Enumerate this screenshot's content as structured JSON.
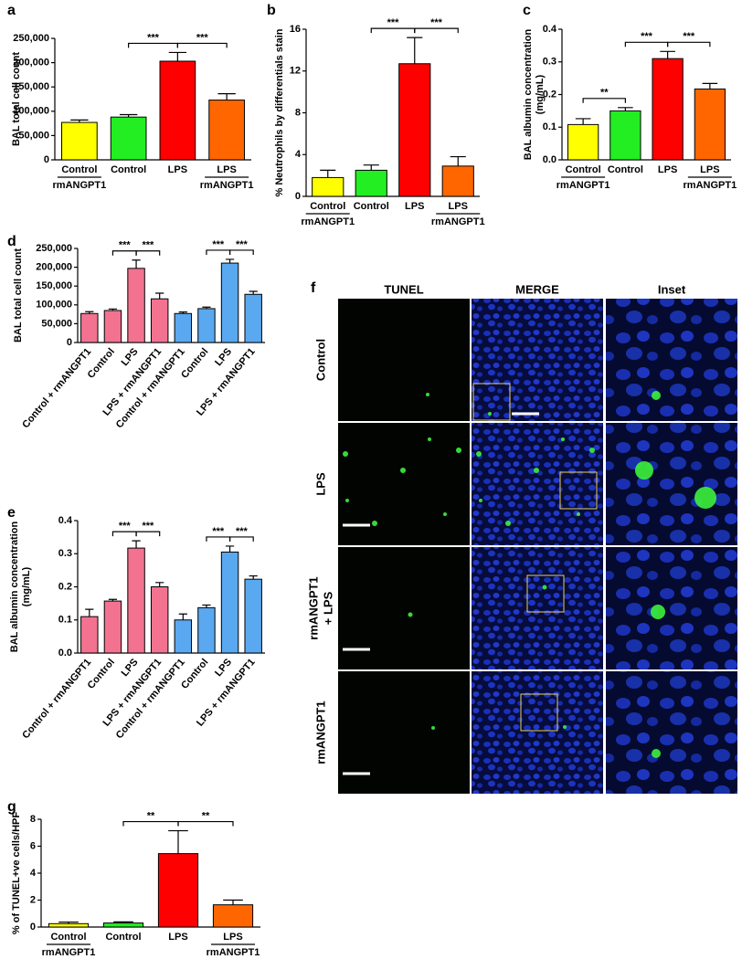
{
  "chart_data": [
    {
      "type": "bar",
      "panel_label": "a",
      "ylabel": [
        "BAL total cell count"
      ],
      "categories": [
        "Control",
        "Control",
        "LPS",
        "LPS"
      ],
      "category_sublabels": [
        "rmANGPT1",
        null,
        null,
        "rmANGPT1"
      ],
      "rotate_labels": false,
      "values": [
        77000,
        88000,
        203000,
        123000
      ],
      "errors": [
        5000,
        5000,
        18000,
        13000
      ],
      "colors": [
        "#ffff00",
        "#22ee22",
        "#ff0000",
        "#ff6600"
      ],
      "ylim": [
        0,
        250000
      ],
      "yticks": [
        0,
        {
          "value": 50000,
          "label": "50,000"
        },
        {
          "value": 100000,
          "label": "100,000"
        },
        {
          "value": 150000,
          "label": "150,000"
        },
        {
          "value": 200000,
          "label": "200,000"
        },
        {
          "value": 250000,
          "label": "250,000"
        }
      ],
      "significance": [
        {
          "between": [
            1,
            2
          ],
          "label": "***"
        },
        {
          "between": [
            2,
            3
          ],
          "label": "***"
        }
      ]
    },
    {
      "type": "bar",
      "panel_label": "b",
      "ylabel": [
        "% Neutrophils by differentials stain"
      ],
      "categories": [
        "Control",
        "Control",
        "LPS",
        "LPS"
      ],
      "category_sublabels": [
        "rmANGPT1",
        null,
        null,
        "rmANGPT1"
      ],
      "rotate_labels": false,
      "values": [
        1.8,
        2.5,
        12.7,
        2.9
      ],
      "errors": [
        0.7,
        0.5,
        2.5,
        0.9
      ],
      "colors": [
        "#ffff00",
        "#22ee22",
        "#ff0000",
        "#ff6600"
      ],
      "ylim": [
        0,
        16
      ],
      "yticks": [
        0,
        4,
        8,
        12,
        16
      ],
      "significance": [
        {
          "between": [
            1,
            2
          ],
          "label": "***"
        },
        {
          "between": [
            2,
            3
          ],
          "label": "***"
        }
      ]
    },
    {
      "type": "bar",
      "panel_label": "c",
      "ylabel": [
        "BAL albumin concentration",
        "(mg/mL)"
      ],
      "categories": [
        "Control",
        "Control",
        "LPS",
        "LPS"
      ],
      "category_sublabels": [
        "rmANGPT1",
        null,
        null,
        "rmANGPT1"
      ],
      "rotate_labels": false,
      "values": [
        0.108,
        0.15,
        0.31,
        0.217
      ],
      "errors": [
        0.018,
        0.01,
        0.022,
        0.017
      ],
      "colors": [
        "#ffff00",
        "#22ee22",
        "#ff0000",
        "#ff6600"
      ],
      "ylim": [
        0,
        0.4
      ],
      "yticks": [
        {
          "value": 0,
          "label": "0.0"
        },
        0.1,
        0.2,
        0.3,
        0.4
      ],
      "significance": [
        {
          "between": [
            0,
            1
          ],
          "label": "**"
        },
        {
          "between": [
            1,
            2
          ],
          "label": "***"
        },
        {
          "between": [
            2,
            3
          ],
          "label": "***"
        }
      ]
    },
    {
      "type": "bar",
      "panel_label": "d",
      "ylabel": [
        "BAL total cell count"
      ],
      "categories": [
        "Control + rmANGPT1",
        "Control",
        "LPS",
        "LPS + rmANGPT1",
        "Control + rmANGPT1",
        "Control",
        "LPS",
        "LPS + rmANGPT1"
      ],
      "rotate_labels": true,
      "values": [
        77000,
        85000,
        197000,
        116000,
        77000,
        90000,
        211000,
        128000
      ],
      "errors": [
        5000,
        4000,
        22000,
        15000,
        4000,
        4000,
        10000,
        8000
      ],
      "colors": [
        "#f2728f",
        "#f2728f",
        "#f2728f",
        "#f2728f",
        "#5aa8f0",
        "#5aa8f0",
        "#5aa8f0",
        "#5aa8f0"
      ],
      "ylim": [
        0,
        250000
      ],
      "yticks": [
        0,
        {
          "value": 50000,
          "label": "50,000"
        },
        {
          "value": 100000,
          "label": "100,000"
        },
        {
          "value": 150000,
          "label": "150,000"
        },
        {
          "value": 200000,
          "label": "200,000"
        },
        {
          "value": 250000,
          "label": "250,000"
        }
      ],
      "significance": [
        {
          "between": [
            1,
            2
          ],
          "label": "***"
        },
        {
          "between": [
            2,
            3
          ],
          "label": "***"
        },
        {
          "between": [
            5,
            6
          ],
          "label": "***"
        },
        {
          "between": [
            6,
            7
          ],
          "label": "***"
        }
      ]
    },
    {
      "type": "bar",
      "panel_label": "e",
      "ylabel": [
        "BAL albumin concentration",
        "(mg/mL)"
      ],
      "categories": [
        "Control + rmANGPT1",
        "Control",
        "LPS",
        "LPS + rmANGPT1",
        "Control + rmANGPT1",
        "Control",
        "LPS",
        "LPS + rmANGPT1"
      ],
      "rotate_labels": true,
      "values": [
        0.11,
        0.157,
        0.317,
        0.2,
        0.1,
        0.137,
        0.305,
        0.223
      ],
      "errors": [
        0.022,
        0.005,
        0.022,
        0.013,
        0.018,
        0.008,
        0.018,
        0.01
      ],
      "colors": [
        "#f2728f",
        "#f2728f",
        "#f2728f",
        "#f2728f",
        "#5aa8f0",
        "#5aa8f0",
        "#5aa8f0",
        "#5aa8f0"
      ],
      "ylim": [
        0,
        0.4
      ],
      "yticks": [
        {
          "value": 0,
          "label": "0.0"
        },
        0.1,
        0.2,
        0.3,
        0.4
      ],
      "significance": [
        {
          "between": [
            1,
            2
          ],
          "label": "***"
        },
        {
          "between": [
            2,
            3
          ],
          "label": "***"
        },
        {
          "between": [
            5,
            6
          ],
          "label": "***"
        },
        {
          "between": [
            6,
            7
          ],
          "label": "***"
        }
      ]
    },
    {
      "type": "bar",
      "panel_label": "g",
      "ylabel": [
        "% of TUNEL+ve cells/HPF"
      ],
      "categories": [
        "Control",
        "Control",
        "LPS",
        "LPS"
      ],
      "category_sublabels": [
        "rmANGPT1",
        null,
        null,
        "rmANGPT1"
      ],
      "rotate_labels": false,
      "values": [
        0.25,
        0.3,
        5.45,
        1.65
      ],
      "errors": [
        0.12,
        0.08,
        1.7,
        0.35
      ],
      "colors": [
        "#ffff00",
        "#22ee22",
        "#ff0000",
        "#ff6600"
      ],
      "ylim": [
        0,
        8
      ],
      "yticks": [
        0,
        2,
        4,
        6,
        8
      ],
      "significance": [
        {
          "between": [
            1,
            2
          ],
          "label": "**"
        },
        {
          "between": [
            2,
            3
          ],
          "label": "**"
        }
      ]
    }
  ],
  "image_panel": {
    "panel_label": "f",
    "columns": [
      "TUNEL",
      "MERGE",
      "Inset"
    ],
    "rows": [
      [
        "Control"
      ],
      [
        "LPS"
      ],
      [
        "rmANGPT1",
        "+ LPS"
      ],
      [
        "rmANGPT1"
      ]
    ]
  }
}
